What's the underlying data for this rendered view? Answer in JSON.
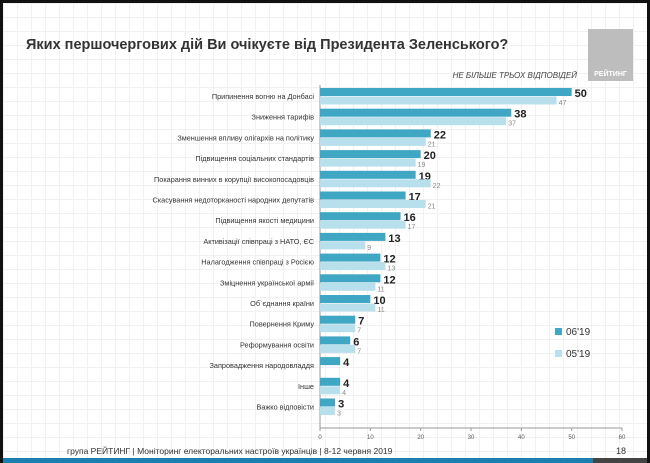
{
  "title": "Яких першочергових дій Ви очікуєте від Президента Зеленського?",
  "subtitle": "НЕ БІЛЬШЕ ТРЬОХ ВІДПОВІДЕЙ",
  "logo_text": "РЕЙТИНГ",
  "footer": "група РЕЙТИНГ | Моніторинг електоральних настроїв українців  | 8-12 червня 2019",
  "page_number": "18",
  "chart_data": {
    "type": "bar",
    "orientation": "horizontal",
    "categories": [
      "Припинення вогню на Донбасі",
      "Зниження тарифів",
      "Зменшення впливу олігархів на політику",
      "Підвищення соціальних стандартів",
      "Покарання винних в корупції високопосадовців",
      "Скасування недоторканості народних депутатів",
      "Підвищення якості медицини",
      "Активізації співпраці з НАТО, ЄС",
      "Налагодження співпраці з Росією",
      "Зміцнення української армії",
      "Об`єднання країни",
      "Повернення Криму",
      "Реформування освіти",
      "Запровадження народовладдя",
      "Інше",
      "Важко відповісти"
    ],
    "series": [
      {
        "name": "06'19",
        "color": "#3fa6c4",
        "values": [
          50,
          38,
          22,
          20,
          19,
          17,
          16,
          13,
          12,
          12,
          10,
          7,
          6,
          4,
          4,
          3
        ]
      },
      {
        "name": "05'19",
        "color": "#b8e0ec",
        "values": [
          47,
          37,
          21,
          19,
          22,
          21,
          17,
          9,
          13,
          11,
          11,
          7,
          7,
          null,
          4,
          3
        ]
      }
    ],
    "xlim": [
      0,
      60
    ],
    "xticks": [
      "0",
      "10",
      "20",
      "30",
      "40",
      "50",
      "60"
    ],
    "legend": "right",
    "grid": false
  }
}
